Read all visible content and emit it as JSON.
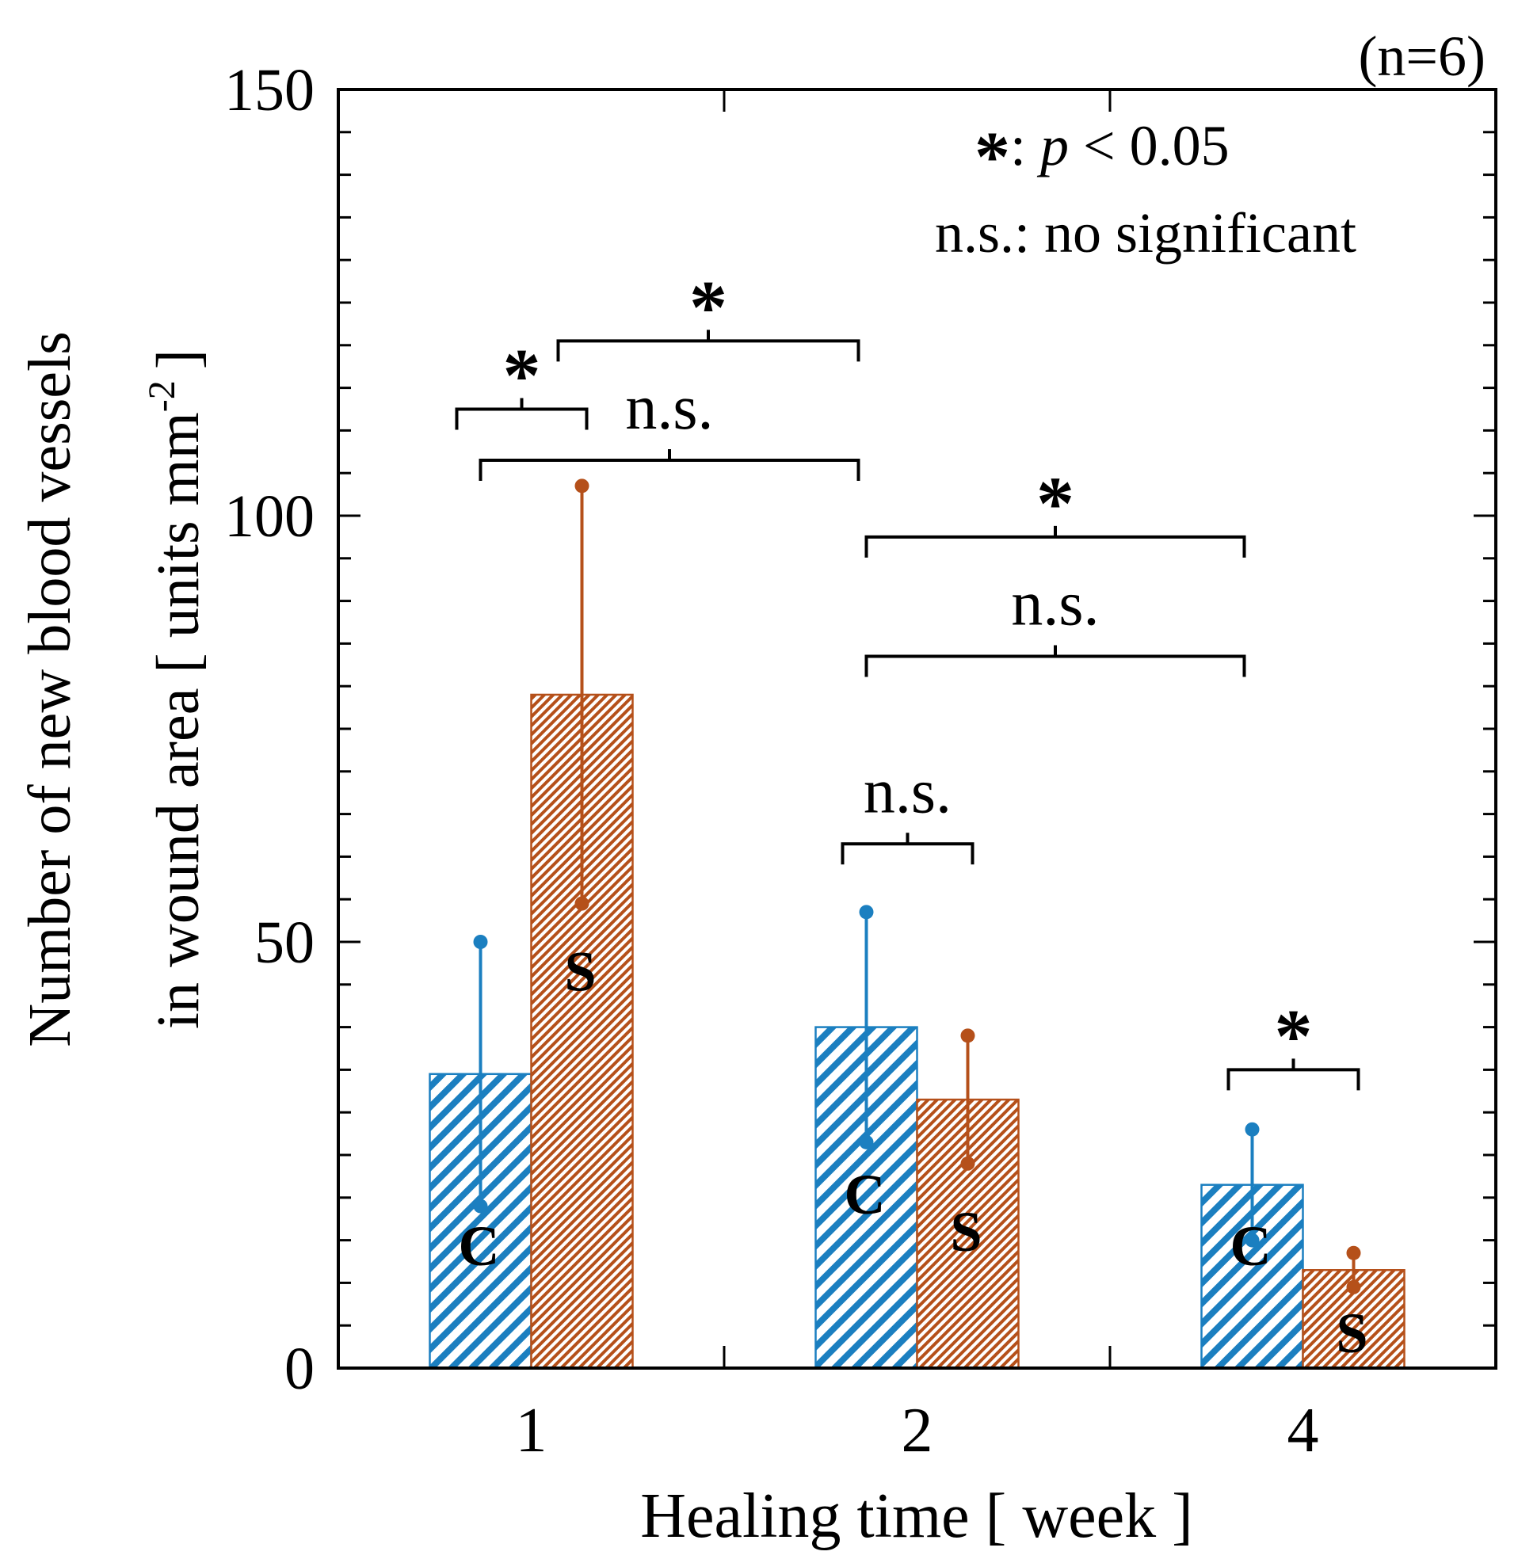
{
  "chart_data": {
    "type": "bar",
    "n_label": "(n=6)",
    "xlabel": "Healing time [ week ]",
    "ylabel_line1": "Number of new blood vessels",
    "ylabel_line2_main": "in wound area [ units mm",
    "ylabel_line2_sup": "-2",
    "ylabel_line2_end": "]",
    "ylim": [
      0,
      150
    ],
    "yticks": [
      "0",
      "50",
      "100",
      "150"
    ],
    "yminor_step": 5,
    "categories": [
      "1",
      "2",
      "4"
    ],
    "series": [
      {
        "letter": "C",
        "color": "#1b7fc0",
        "pattern": "hatch-wide",
        "values": [
          34.5,
          40,
          21.5
        ],
        "sd": [
          15.5,
          13.5,
          6.5
        ]
      },
      {
        "letter": "S",
        "color": "#b5501a",
        "pattern": "hatch-fine",
        "values": [
          79,
          31.5,
          11.5
        ],
        "sd": [
          24.5,
          7.5,
          2
        ]
      }
    ],
    "legend": {
      "star_symbol": "*",
      "star_text": ": ",
      "p_symbol": "p",
      "p_text": " < 0.05",
      "ns_text": "n.s.: no significant"
    },
    "significance": [
      {
        "label": "*",
        "from": [
          0,
          0
        ],
        "to": [
          0,
          1
        ],
        "y": 112.5
      },
      {
        "label": "*",
        "from": [
          0,
          1
        ],
        "to": [
          1,
          0
        ],
        "y": 120.5
      },
      {
        "label": "n.s.",
        "from": [
          0,
          0
        ],
        "to": [
          1,
          0
        ],
        "y": 106.5
      },
      {
        "label": "*",
        "from": [
          1,
          0
        ],
        "to": [
          2,
          0
        ],
        "y": 97.5
      },
      {
        "label": "n.s.",
        "from": [
          1,
          0
        ],
        "to": [
          2,
          0
        ],
        "y": 83.5
      },
      {
        "label": "n.s.",
        "from": [
          1,
          0
        ],
        "to": [
          1,
          1
        ],
        "y": 61.5
      },
      {
        "label": "*",
        "from": [
          2,
          0
        ],
        "to": [
          2,
          1
        ],
        "y": 35
      }
    ]
  }
}
